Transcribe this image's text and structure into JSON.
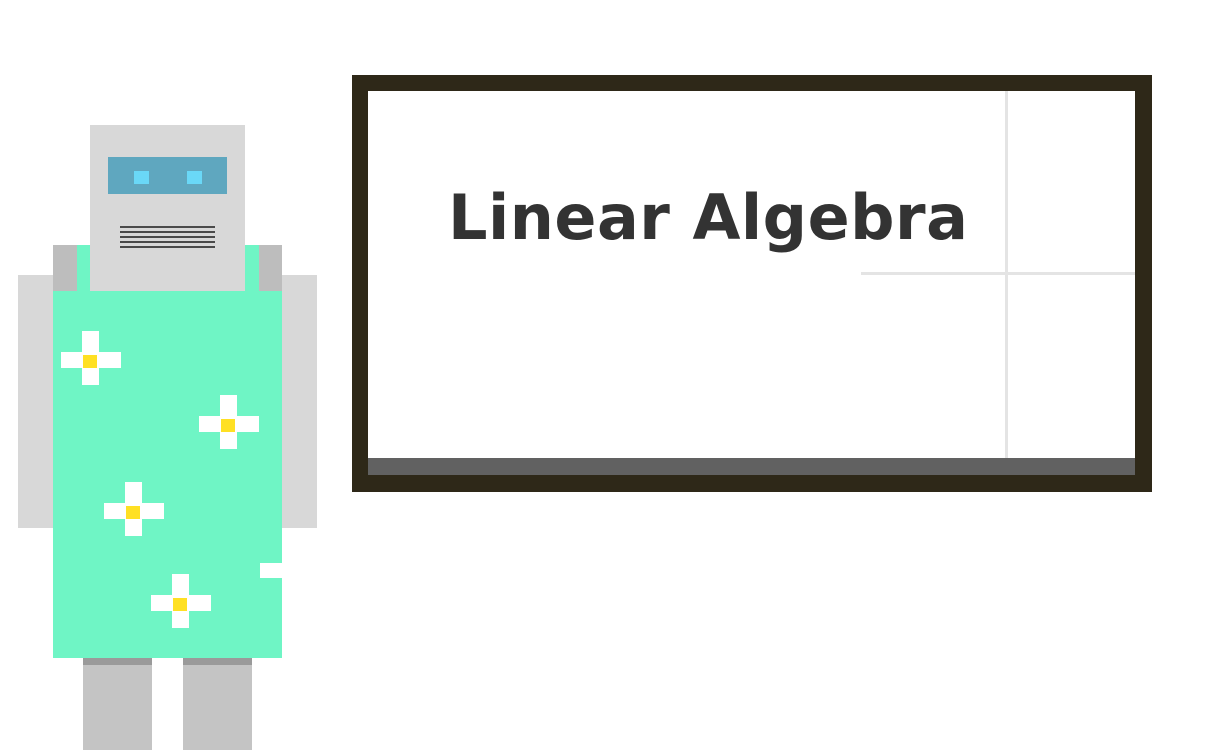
{
  "board": {
    "title": "Linear Algebra"
  },
  "colors": {
    "background": "#ffffff",
    "board_frame": "#2e2818",
    "board_surface": "#ffffff",
    "board_tray": "#616161",
    "title_text": "#333333",
    "robot_body": "#d8d8d8",
    "robot_visor": "#5fa7bf",
    "robot_eyes": "#6ad8f7",
    "dress": "#6ff5c5",
    "flower_petals": "#ffffff",
    "flower_center": "#ffe023"
  },
  "illustration": {
    "character": "robot-teacher",
    "dress_pattern": "flower-icon"
  }
}
